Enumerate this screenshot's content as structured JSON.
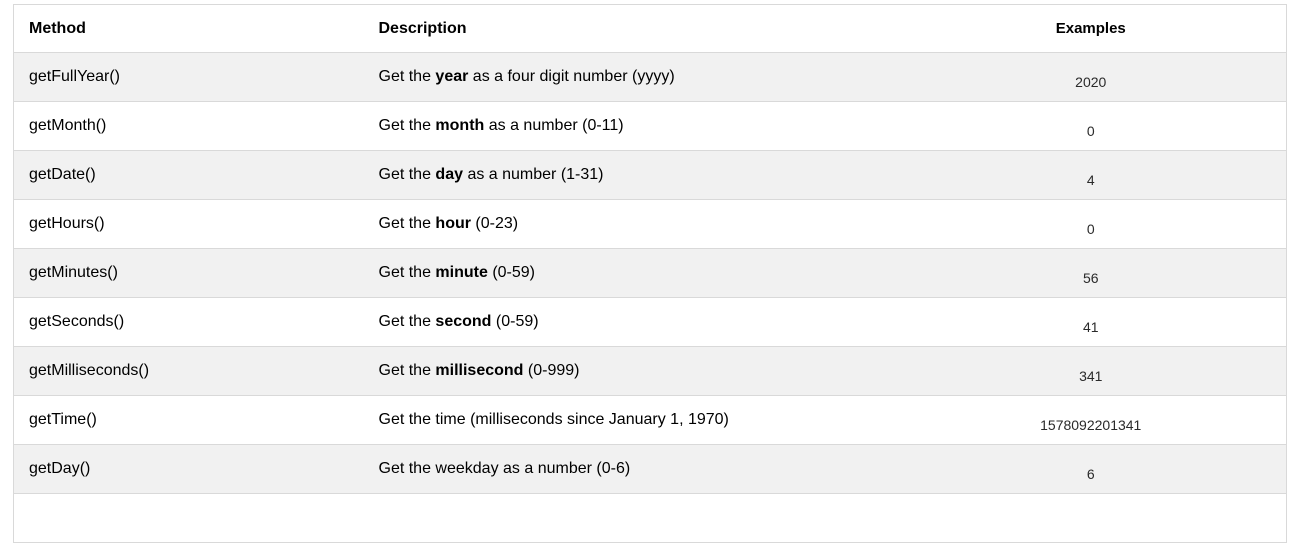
{
  "table": {
    "columns": [
      {
        "label": "Method"
      },
      {
        "label": "Description"
      },
      {
        "label": "Examples"
      }
    ],
    "rows": [
      {
        "method": "getFullYear()",
        "desc_prefix": "Get the ",
        "desc_bold": "year",
        "desc_suffix": " as a four digit number (yyyy)",
        "example": "2020"
      },
      {
        "method": "getMonth()",
        "desc_prefix": "Get the ",
        "desc_bold": "month",
        "desc_suffix": " as a number (0-11)",
        "example": "0"
      },
      {
        "method": "getDate()",
        "desc_prefix": "Get the ",
        "desc_bold": "day",
        "desc_suffix": " as a number (1-31)",
        "example": "4"
      },
      {
        "method": "getHours()",
        "desc_prefix": "Get the ",
        "desc_bold": "hour",
        "desc_suffix": " (0-23)",
        "example": "0"
      },
      {
        "method": "getMinutes()",
        "desc_prefix": "Get the ",
        "desc_bold": "minute",
        "desc_suffix": " (0-59)",
        "example": "56"
      },
      {
        "method": "getSeconds()",
        "desc_prefix": "Get the ",
        "desc_bold": "second",
        "desc_suffix": " (0-59)",
        "example": "41"
      },
      {
        "method": "getMilliseconds()",
        "desc_prefix": "Get the ",
        "desc_bold": "millisecond",
        "desc_suffix": " (0-999)",
        "example": "341"
      },
      {
        "method": "getTime()",
        "desc_prefix": "Get the time (milliseconds since January 1, 1970)",
        "desc_bold": "",
        "desc_suffix": "",
        "example": "1578092201341"
      },
      {
        "method": "getDay()",
        "desc_prefix": "Get the weekday as a number (0-6)",
        "desc_bold": "",
        "desc_suffix": "",
        "example": "6"
      }
    ],
    "colors": {
      "row_bg": "#ffffff",
      "row_alt_bg": "#f1f1f1",
      "border": "#d9d9d9",
      "text": "#000000"
    }
  }
}
